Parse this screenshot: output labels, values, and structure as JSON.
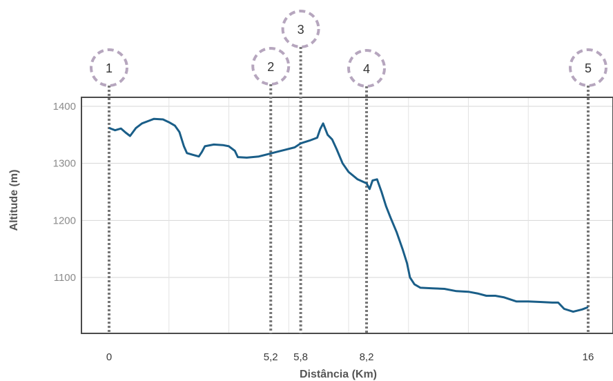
{
  "chart_data": {
    "type": "line",
    "title": "",
    "xlabel": "Distância (Km)",
    "ylabel": "Altitude (m)",
    "xlim": [
      0,
      16
    ],
    "ylim": [
      1020,
      1420
    ],
    "yticks": [
      {
        "value": 1400,
        "label": "1400"
      },
      {
        "value": 1300,
        "label": "1300"
      },
      {
        "value": 1200,
        "label": "1200"
      },
      {
        "value": 1100,
        "label": "1100"
      }
    ],
    "grid": true,
    "legend": "none",
    "markers": [
      {
        "id": "1",
        "x": 0,
        "label": "0"
      },
      {
        "id": "2",
        "x": 5.4,
        "label": "5,2"
      },
      {
        "id": "3",
        "x": 6.4,
        "label": "5,8"
      },
      {
        "id": "4",
        "x": 8.6,
        "label": "8,2"
      },
      {
        "id": "5",
        "x": 16,
        "label": "16"
      }
    ],
    "series": [
      {
        "color": "#1a5e88",
        "points": [
          [
            0,
            1362
          ],
          [
            0.2,
            1358
          ],
          [
            0.4,
            1361
          ],
          [
            0.55,
            1354
          ],
          [
            0.7,
            1348
          ],
          [
            0.9,
            1362
          ],
          [
            1.1,
            1370
          ],
          [
            1.3,
            1374
          ],
          [
            1.5,
            1378
          ],
          [
            1.8,
            1377
          ],
          [
            2.0,
            1372
          ],
          [
            2.2,
            1366
          ],
          [
            2.35,
            1355
          ],
          [
            2.5,
            1330
          ],
          [
            2.6,
            1318
          ],
          [
            2.8,
            1315
          ],
          [
            3.0,
            1312
          ],
          [
            3.1,
            1320
          ],
          [
            3.2,
            1330
          ],
          [
            3.5,
            1333
          ],
          [
            3.8,
            1332
          ],
          [
            4.0,
            1330
          ],
          [
            4.2,
            1322
          ],
          [
            4.3,
            1311
          ],
          [
            4.6,
            1310
          ],
          [
            5.0,
            1312
          ],
          [
            5.3,
            1316
          ],
          [
            5.6,
            1320
          ],
          [
            5.9,
            1324
          ],
          [
            6.2,
            1328
          ],
          [
            6.4,
            1335
          ],
          [
            6.7,
            1340
          ],
          [
            6.95,
            1345
          ],
          [
            7.05,
            1360
          ],
          [
            7.15,
            1370
          ],
          [
            7.3,
            1350
          ],
          [
            7.45,
            1342
          ],
          [
            7.6,
            1325
          ],
          [
            7.8,
            1300
          ],
          [
            8.0,
            1285
          ],
          [
            8.3,
            1272
          ],
          [
            8.6,
            1265
          ],
          [
            8.7,
            1255
          ],
          [
            8.8,
            1270
          ],
          [
            8.95,
            1272
          ],
          [
            9.1,
            1250
          ],
          [
            9.25,
            1225
          ],
          [
            9.4,
            1205
          ],
          [
            9.6,
            1180
          ],
          [
            9.8,
            1150
          ],
          [
            9.95,
            1125
          ],
          [
            10.05,
            1100
          ],
          [
            10.2,
            1088
          ],
          [
            10.4,
            1082
          ],
          [
            10.8,
            1081
          ],
          [
            11.2,
            1080
          ],
          [
            11.6,
            1076
          ],
          [
            12.0,
            1075
          ],
          [
            12.3,
            1072
          ],
          [
            12.6,
            1068
          ],
          [
            12.9,
            1068
          ],
          [
            13.2,
            1065
          ],
          [
            13.6,
            1058
          ],
          [
            14.0,
            1058
          ],
          [
            14.4,
            1057
          ],
          [
            14.8,
            1056
          ],
          [
            15.0,
            1056
          ],
          [
            15.2,
            1045
          ],
          [
            15.5,
            1040
          ],
          [
            15.8,
            1044
          ],
          [
            16.0,
            1048
          ]
        ]
      }
    ]
  }
}
